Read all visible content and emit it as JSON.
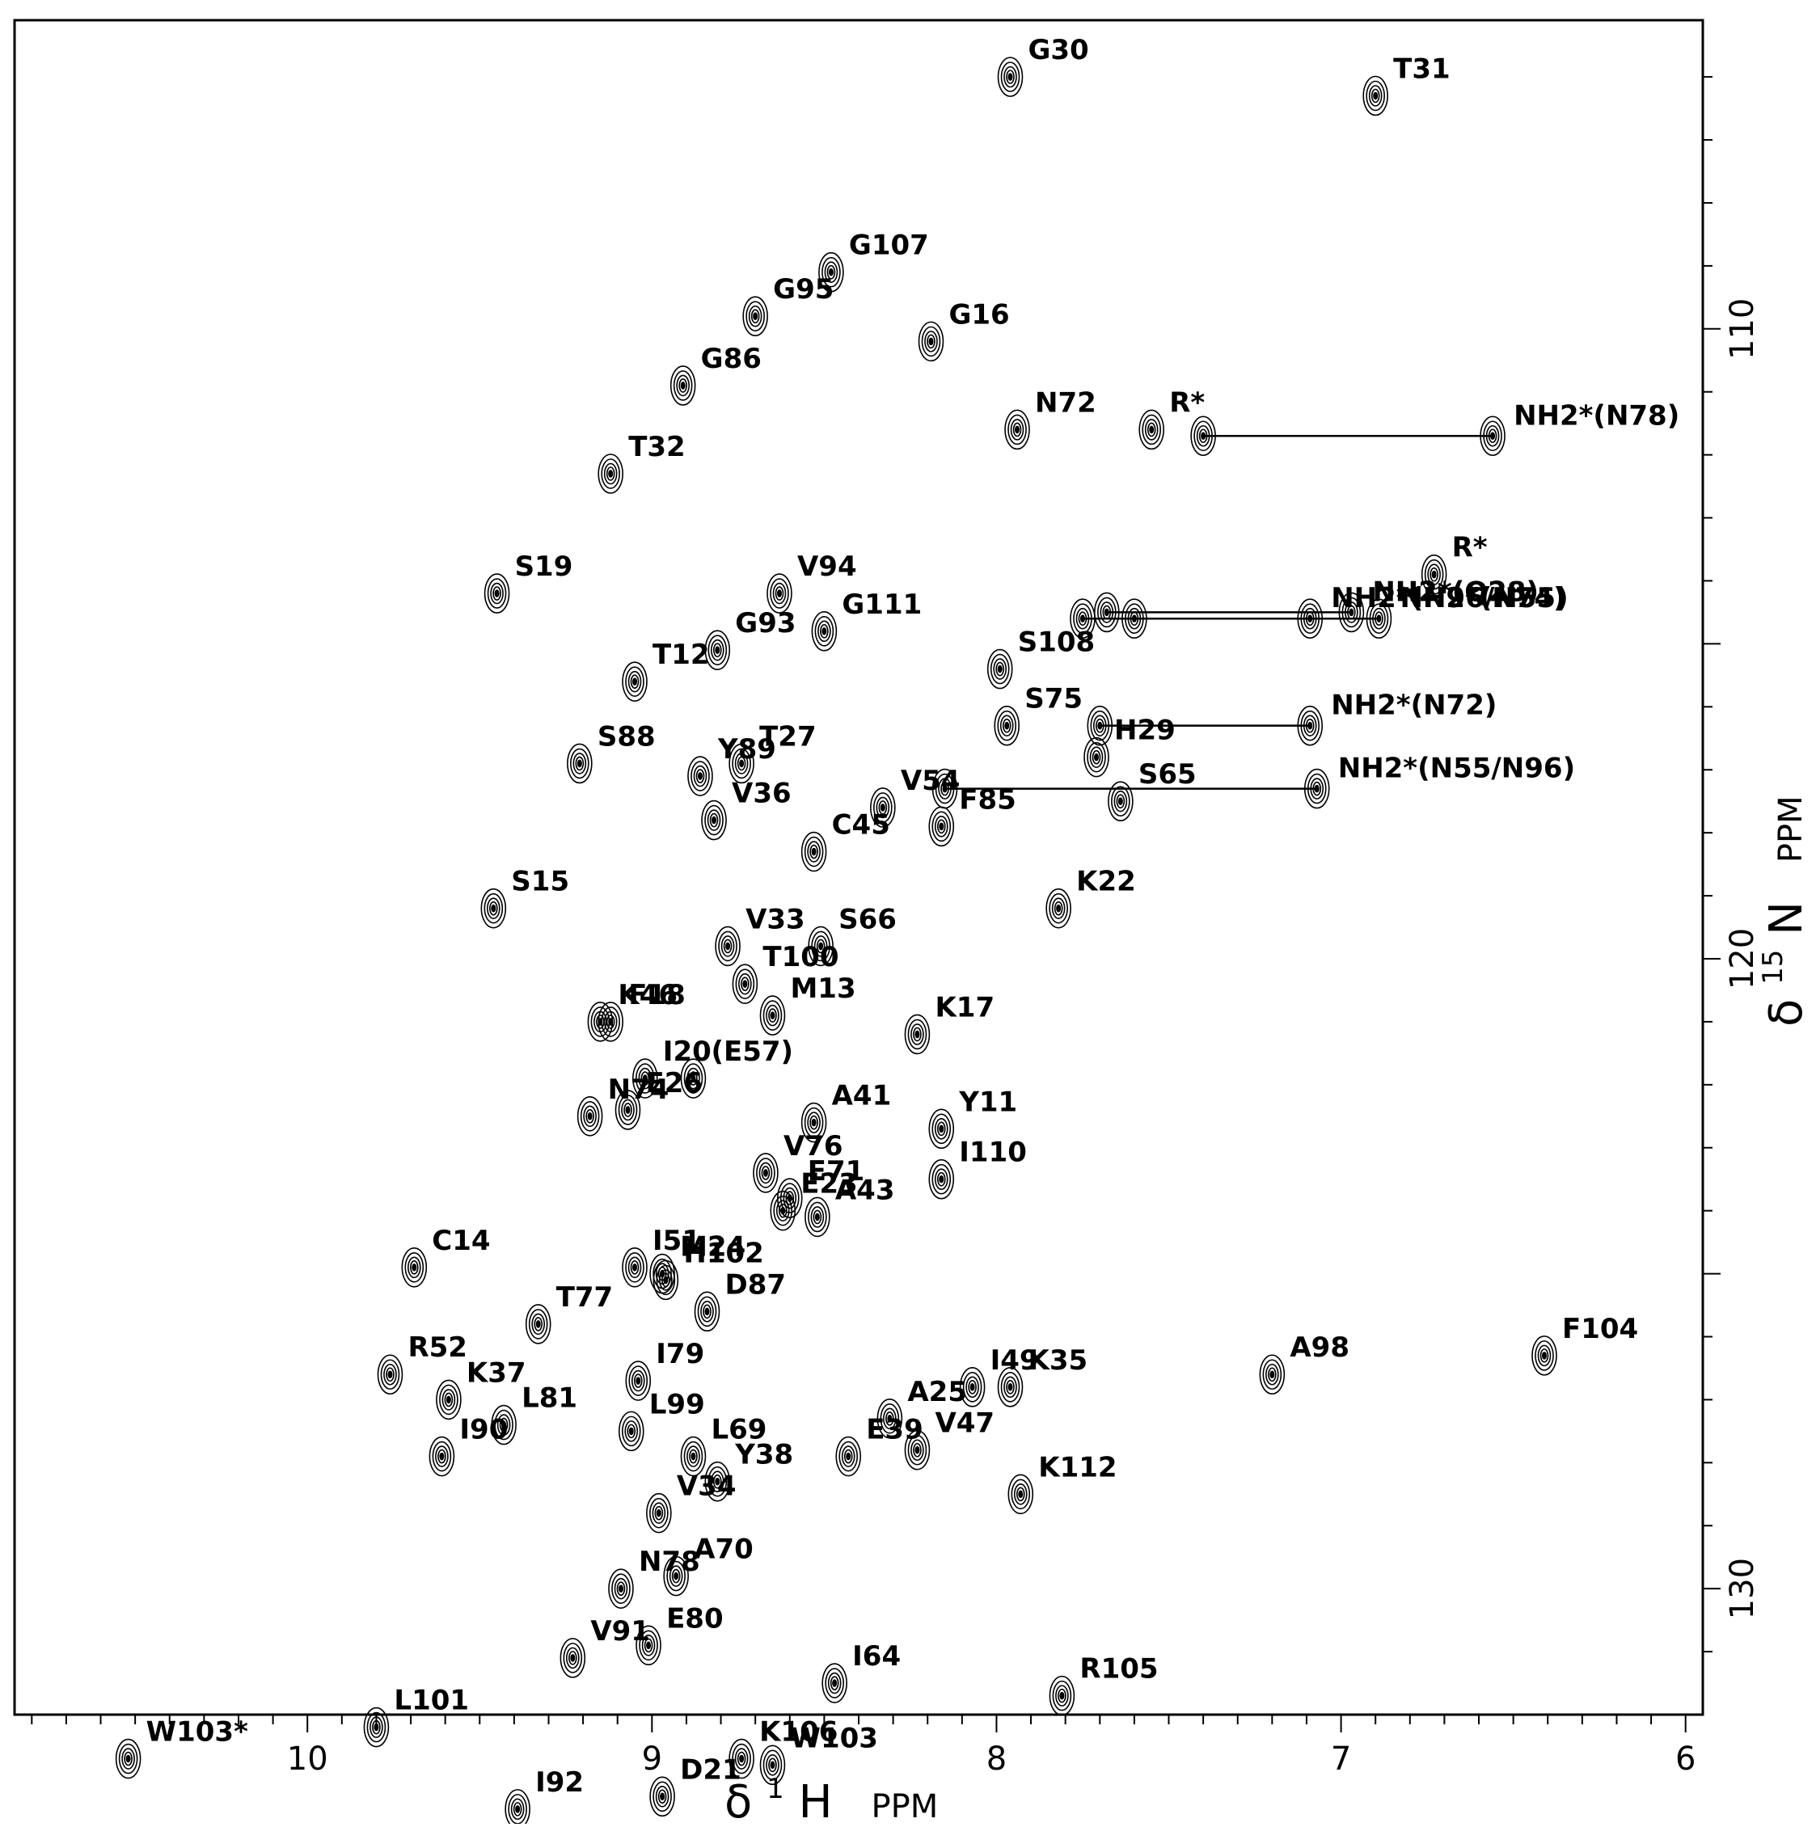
{
  "chart_data": {
    "type": "scatter",
    "subtype": "2D 1H-15N HSQC NMR spectrum (contour plot)",
    "x_axis": {
      "symbol": "δ",
      "nucleus_sup": "1",
      "nucleus": "H",
      "unit": "PPM",
      "range": [
        10.85,
        5.95
      ],
      "reversed": true,
      "major_ticks": [
        10,
        9,
        8,
        7,
        6
      ],
      "tick_labels": [
        "10",
        "9",
        "8",
        "7",
        "6"
      ]
    },
    "y_axis": {
      "symbol": "δ",
      "nucleus_sup": "15",
      "nucleus": "N",
      "unit": "PPM",
      "range": [
        105.1,
        132.0
      ],
      "reversed": true,
      "position": "right",
      "major_ticks": [
        110,
        120,
        130
      ],
      "tick_labels": [
        "110",
        "120",
        "130"
      ]
    },
    "grid": false,
    "legend": "none",
    "peaks": [
      {
        "label": "G30",
        "h": 7.96,
        "n": 106.0
      },
      {
        "label": "T31",
        "h": 6.9,
        "n": 106.3
      },
      {
        "label": "G107",
        "h": 8.48,
        "n": 109.1
      },
      {
        "label": "G95",
        "h": 8.7,
        "n": 109.8
      },
      {
        "label": "G16",
        "h": 8.19,
        "n": 110.2
      },
      {
        "label": "G86",
        "h": 8.91,
        "n": 110.9
      },
      {
        "label": "N72",
        "h": 7.94,
        "n": 111.6
      },
      {
        "label": "R*",
        "h": 7.55,
        "n": 111.6
      },
      {
        "label": "T32",
        "h": 9.12,
        "n": 112.3
      },
      {
        "label": "S19",
        "h": 9.45,
        "n": 114.2
      },
      {
        "label": "V94",
        "h": 8.63,
        "n": 114.2
      },
      {
        "label": "G111",
        "h": 8.5,
        "n": 114.8
      },
      {
        "label": "G93",
        "h": 8.81,
        "n": 115.1
      },
      {
        "label": "T12",
        "h": 9.05,
        "n": 115.6
      },
      {
        "label": "S108",
        "h": 7.99,
        "n": 115.4
      },
      {
        "label": "S75",
        "h": 7.97,
        "n": 116.3
      },
      {
        "label": "H29",
        "h": 7.71,
        "n": 116.8
      },
      {
        "label": "S88",
        "h": 9.21,
        "n": 116.9
      },
      {
        "label": "Y89",
        "h": 8.86,
        "n": 117.1
      },
      {
        "label": "T27",
        "h": 8.74,
        "n": 116.9
      },
      {
        "label": "V54",
        "h": 8.33,
        "n": 117.6
      },
      {
        "label": "V36",
        "h": 8.82,
        "n": 117.8
      },
      {
        "label": "S65",
        "h": 7.64,
        "n": 117.5
      },
      {
        "label": "F85",
        "h": 8.16,
        "n": 117.9
      },
      {
        "label": "C45",
        "h": 8.53,
        "n": 118.3
      },
      {
        "label": "S15",
        "h": 9.46,
        "n": 119.2
      },
      {
        "label": "K22",
        "h": 7.82,
        "n": 119.2
      },
      {
        "label": "S66",
        "h": 8.51,
        "n": 119.8
      },
      {
        "label": "V33",
        "h": 8.78,
        "n": 119.8
      },
      {
        "label": "T100",
        "h": 8.73,
        "n": 120.4
      },
      {
        "label": "K46",
        "h": 9.15,
        "n": 121.0
      },
      {
        "label": "F18",
        "h": 9.12,
        "n": 121.0
      },
      {
        "label": "M13",
        "h": 8.65,
        "n": 120.9
      },
      {
        "label": "K17",
        "h": 8.23,
        "n": 121.2
      },
      {
        "label": "(E57)",
        "h": 8.88,
        "n": 121.9
      },
      {
        "label": "I20",
        "h": 9.02,
        "n": 121.9
      },
      {
        "label": "E26",
        "h": 9.07,
        "n": 122.4
      },
      {
        "label": "N74",
        "h": 9.18,
        "n": 122.5
      },
      {
        "label": "A41",
        "h": 8.53,
        "n": 122.6
      },
      {
        "label": "Y11",
        "h": 8.16,
        "n": 122.7
      },
      {
        "label": "V76",
        "h": 8.67,
        "n": 123.4
      },
      {
        "label": "I110",
        "h": 8.16,
        "n": 123.5
      },
      {
        "label": "E71",
        "h": 8.6,
        "n": 123.8
      },
      {
        "label": "E23",
        "h": 8.62,
        "n": 124.0
      },
      {
        "label": "A43",
        "h": 8.52,
        "n": 124.1
      },
      {
        "label": "C14",
        "h": 9.69,
        "n": 124.9
      },
      {
        "label": "I51",
        "h": 9.05,
        "n": 124.9
      },
      {
        "label": "M24",
        "h": 8.97,
        "n": 125.0
      },
      {
        "label": "H102",
        "h": 8.96,
        "n": 125.1
      },
      {
        "label": "T77",
        "h": 9.33,
        "n": 125.8
      },
      {
        "label": "D87",
        "h": 8.84,
        "n": 125.6
      },
      {
        "label": "F104",
        "h": 6.41,
        "n": 126.3
      },
      {
        "label": "A98",
        "h": 7.2,
        "n": 126.6
      },
      {
        "label": "I49",
        "h": 8.07,
        "n": 126.8
      },
      {
        "label": "K35",
        "h": 7.96,
        "n": 126.8
      },
      {
        "label": "R52",
        "h": 9.76,
        "n": 126.6
      },
      {
        "label": "K37",
        "h": 9.59,
        "n": 127.0
      },
      {
        "label": "I79",
        "h": 9.04,
        "n": 126.7
      },
      {
        "label": "L99",
        "h": 9.06,
        "n": 127.5
      },
      {
        "label": "L81",
        "h": 9.43,
        "n": 127.4
      },
      {
        "label": "A25",
        "h": 8.31,
        "n": 127.3
      },
      {
        "label": "L69",
        "h": 8.88,
        "n": 127.9
      },
      {
        "label": "I90",
        "h": 9.61,
        "n": 127.9
      },
      {
        "label": "E39",
        "h": 8.43,
        "n": 127.9
      },
      {
        "label": "V47",
        "h": 8.23,
        "n": 127.8
      },
      {
        "label": "K112",
        "h": 7.93,
        "n": 128.5
      },
      {
        "label": "Y38",
        "h": 8.81,
        "n": 128.3
      },
      {
        "label": "V34",
        "h": 8.98,
        "n": 128.8
      },
      {
        "label": "A70",
        "h": 8.93,
        "n": 129.8
      },
      {
        "label": "N78",
        "h": 9.09,
        "n": 130.0
      },
      {
        "label": "E80",
        "h": 9.01,
        "n": 130.9
      },
      {
        "label": "V91",
        "h": 9.23,
        "n": 131.1
      },
      {
        "label": "I64",
        "h": 8.47,
        "n": 131.5
      },
      {
        "label": "R105",
        "h": 7.81,
        "n": 131.7
      },
      {
        "label": "L101",
        "h": 9.8,
        "n": 132.2
      },
      {
        "label": "W103*",
        "h": 10.52,
        "n": 132.7
      },
      {
        "label": "K106",
        "h": 8.74,
        "n": 132.7
      },
      {
        "label": "W103",
        "h": 8.65,
        "n": 132.8
      },
      {
        "label": "I92",
        "h": 9.39,
        "n": 133.5
      },
      {
        "label": "D21",
        "h": 8.97,
        "n": 133.3
      },
      {
        "label": "R*",
        "h": 6.73,
        "n": 113.9
      }
    ],
    "nh2_pairs": [
      {
        "label": "NH2*(N78)",
        "h1": 7.4,
        "h2": 6.56,
        "n": 111.7
      },
      {
        "label": "NH2*(Q28)",
        "h1": 7.68,
        "h2": 6.97,
        "n": 114.5
      },
      {
        "label": "NH2*(N96/N55)",
        "h1": 7.6,
        "h2": 7.09,
        "n": 114.6
      },
      {
        "label": "NH2*(N74)",
        "h1": 7.75,
        "h2": 6.89,
        "n": 114.6
      },
      {
        "label": "NH2*(N72)",
        "h1": 7.7,
        "h2": 7.09,
        "n": 116.3
      },
      {
        "label": "NH2*(N55/N96)",
        "h1": 8.15,
        "h2": 7.07,
        "n": 117.3
      }
    ]
  }
}
